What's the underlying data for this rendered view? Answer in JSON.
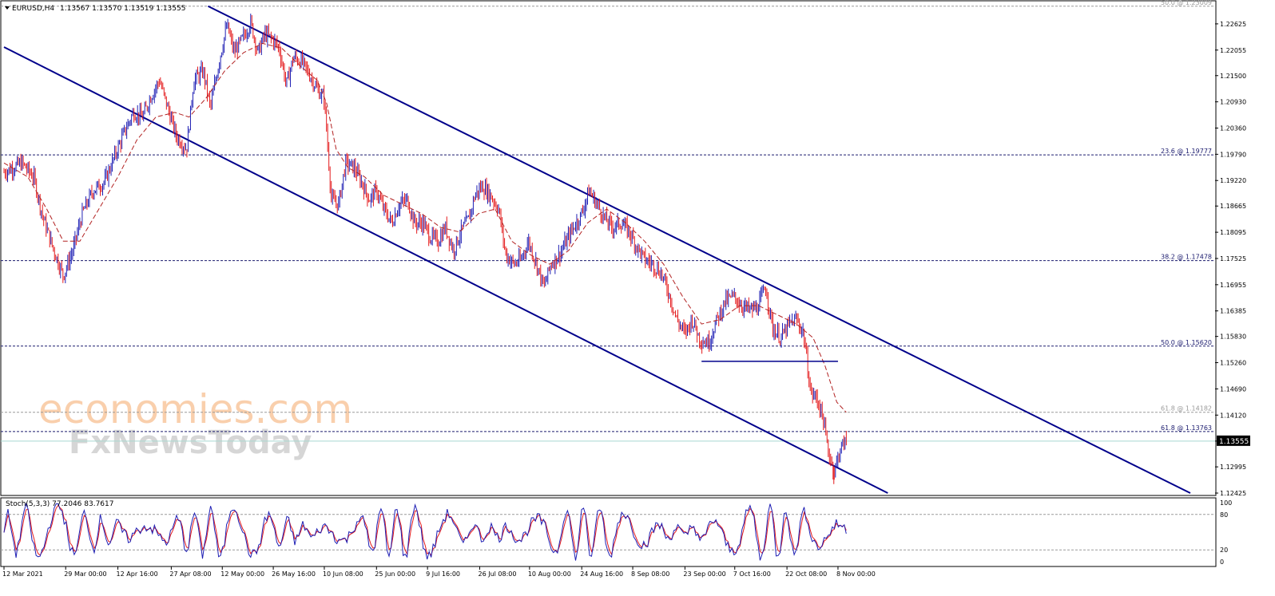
{
  "header": {
    "symbol": "EURUSD,H4",
    "ohlc": "1.13567 1.13570 1.13519 1.13555"
  },
  "watermark": {
    "line1": "economies.com",
    "line2": "FxNewsToday"
  },
  "colors": {
    "background": "#ffffff",
    "bull_candle": "#1f1fb4",
    "bear_candle": "#e41a1c",
    "moving_average": "#b22222",
    "channel_line": "#00008b",
    "fib_level": "#1b1b6e",
    "fib_faint": "#9a9a9a",
    "support_line": "#00008b",
    "bid_line": "#a8d8d0",
    "stoch_main": "#1f1fb4",
    "stoch_signal": "#e41a1c",
    "axis": "#000000",
    "watermark_orange": "#f5a86a",
    "watermark_grey": "#c9c9c9"
  },
  "chart_data": [
    {
      "type": "candlestick",
      "instrument": "EURUSD",
      "timeframe": "H4",
      "current_price": "1.13555",
      "y_ticks": [
        "1.22625",
        "1.22055",
        "1.21500",
        "1.20930",
        "1.20360",
        "1.19790",
        "1.19220",
        "1.18665",
        "1.18095",
        "1.17525",
        "1.16955",
        "1.16385",
        "1.15830",
        "1.15260",
        "1.14690",
        "1.14120",
        "1.13555",
        "1.12995",
        "1.12425"
      ],
      "y_tick_values": [
        1.22625,
        1.22055,
        1.215,
        1.2093,
        1.2036,
        1.1979,
        1.1922,
        1.18665,
        1.18095,
        1.17525,
        1.16955,
        1.16385,
        1.1583,
        1.1526,
        1.1469,
        1.1412,
        1.13555,
        1.12995,
        1.12425
      ],
      "ylim": [
        1.12425,
        1.23005
      ],
      "x_ticks": [
        "12 Mar 2021",
        "29 Mar 00:00",
        "12 Apr 16:00",
        "27 Apr 08:00",
        "12 May 00:00",
        "26 May 16:00",
        "10 Jun 08:00",
        "25 Jun 00:00",
        "9 Jul 16:00",
        "26 Jul 08:00",
        "10 Aug 00:00",
        "24 Aug 16:00",
        "8 Sep 08:00",
        "23 Sep 00:00",
        "7 Oct 16:00",
        "22 Oct 08:00",
        "8 Nov 00:00"
      ],
      "x_tick_index": [
        0,
        5.2,
        9.6,
        14.1,
        18.4,
        22.7,
        27.0,
        31.4,
        35.7,
        40.1,
        44.3,
        48.7,
        53.0,
        57.4,
        61.6,
        66.0,
        70.3
      ],
      "fib_levels": [
        {
          "label": "50.0 @ 1.23009",
          "value": 1.23009,
          "style": "faint"
        },
        {
          "label": "23.6 @ 1.19777",
          "value": 1.19777,
          "style": "strong"
        },
        {
          "label": "38.2 @ 1.17478",
          "value": 1.17478,
          "style": "strong"
        },
        {
          "label": "50.0 @ 1.15620",
          "value": 1.1562,
          "style": "strong"
        },
        {
          "label": "61.8 @ 1.14182",
          "value": 1.14182,
          "style": "faint"
        },
        {
          "label": "61.8 @ 1.13763",
          "value": 1.13763,
          "style": "strong"
        }
      ],
      "channel_upper": [
        {
          "x": 17.2,
          "y": 1.23009
        },
        {
          "x": 100,
          "y": 1.12425
        }
      ],
      "channel_lower": [
        {
          "x": 0,
          "y": 1.2212
        },
        {
          "x": 74.5,
          "y": 1.12425
        }
      ],
      "support_line": [
        {
          "x": 58.8,
          "y": 1.1529
        },
        {
          "x": 70.3,
          "y": 1.1529
        }
      ],
      "price_path": [
        [
          0,
          1.194
        ],
        [
          1.5,
          1.196
        ],
        [
          2.5,
          1.193
        ],
        [
          3.3,
          1.184
        ],
        [
          4.2,
          1.177
        ],
        [
          5.0,
          1.1715
        ],
        [
          5.8,
          1.177
        ],
        [
          6.6,
          1.185
        ],
        [
          7.5,
          1.19
        ],
        [
          8.5,
          1.192
        ],
        [
          9.4,
          1.198
        ],
        [
          10.2,
          1.203
        ],
        [
          10.9,
          1.207
        ],
        [
          11.7,
          1.206
        ],
        [
          12.3,
          1.21
        ],
        [
          13.1,
          1.214
        ],
        [
          13.8,
          1.208
        ],
        [
          14.5,
          1.202
        ],
        [
          15.4,
          1.199
        ],
        [
          16.0,
          1.214
        ],
        [
          16.8,
          1.216
        ],
        [
          17.4,
          1.208
        ],
        [
          18.2,
          1.219
        ],
        [
          18.8,
          1.226
        ],
        [
          19.4,
          1.22
        ],
        [
          20.1,
          1.223
        ],
        [
          20.8,
          1.2265
        ],
        [
          21.4,
          1.22
        ],
        [
          22.0,
          1.224
        ],
        [
          22.6,
          1.223
        ],
        [
          23.2,
          1.221
        ],
        [
          23.8,
          1.213
        ],
        [
          24.4,
          1.219
        ],
        [
          25.1,
          1.218
        ],
        [
          25.8,
          1.215
        ],
        [
          26.4,
          1.212
        ],
        [
          27.0,
          1.21
        ],
        [
          27.6,
          1.188
        ],
        [
          28.2,
          1.187
        ],
        [
          28.8,
          1.196
        ],
        [
          29.5,
          1.195
        ],
        [
          30.1,
          1.192
        ],
        [
          30.8,
          1.188
        ],
        [
          31.4,
          1.19
        ],
        [
          32.0,
          1.186
        ],
        [
          32.7,
          1.183
        ],
        [
          33.3,
          1.187
        ],
        [
          34.0,
          1.188
        ],
        [
          34.6,
          1.183
        ],
        [
          35.3,
          1.183
        ],
        [
          35.9,
          1.18
        ],
        [
          36.6,
          1.179
        ],
        [
          37.2,
          1.182
        ],
        [
          37.9,
          1.177
        ],
        [
          38.5,
          1.181
        ],
        [
          39.2,
          1.184
        ],
        [
          39.7,
          1.189
        ],
        [
          40.3,
          1.191
        ],
        [
          41.0,
          1.189
        ],
        [
          41.7,
          1.186
        ],
        [
          42.3,
          1.176
        ],
        [
          43.0,
          1.174
        ],
        [
          43.6,
          1.175
        ],
        [
          44.2,
          1.179
        ],
        [
          44.9,
          1.174
        ],
        [
          45.5,
          1.169
        ],
        [
          46.1,
          1.174
        ],
        [
          46.8,
          1.176
        ],
        [
          47.4,
          1.179
        ],
        [
          48.0,
          1.182
        ],
        [
          48.7,
          1.185
        ],
        [
          49.3,
          1.19
        ],
        [
          50.0,
          1.187
        ],
        [
          50.6,
          1.184
        ],
        [
          51.3,
          1.182
        ],
        [
          52.0,
          1.183
        ],
        [
          52.7,
          1.181
        ],
        [
          53.3,
          1.178
        ],
        [
          54.0,
          1.175
        ],
        [
          54.7,
          1.174
        ],
        [
          55.4,
          1.172
        ],
        [
          56.0,
          1.168
        ],
        [
          56.7,
          1.162
        ],
        [
          57.4,
          1.159
        ],
        [
          58.0,
          1.162
        ],
        [
          58.7,
          1.1575
        ],
        [
          59.4,
          1.157
        ],
        [
          60.1,
          1.162
        ],
        [
          60.8,
          1.166
        ],
        [
          61.5,
          1.167
        ],
        [
          62.2,
          1.165
        ],
        [
          62.9,
          1.164
        ],
        [
          63.5,
          1.1645
        ],
        [
          64.2,
          1.169
        ],
        [
          64.8,
          1.16
        ],
        [
          65.5,
          1.158
        ],
        [
          66.2,
          1.161
        ],
        [
          66.8,
          1.162
        ],
        [
          67.4,
          1.159
        ],
        [
          68.0,
          1.146
        ],
        [
          68.5,
          1.145
        ],
        [
          69.0,
          1.141
        ],
        [
          69.5,
          1.133
        ],
        [
          70.0,
          1.129
        ],
        [
          70.5,
          1.134
        ],
        [
          71.0,
          1.1356
        ]
      ],
      "ma_path": [
        [
          0,
          1.196
        ],
        [
          2.0,
          1.193
        ],
        [
          3.6,
          1.186
        ],
        [
          5.0,
          1.179
        ],
        [
          6.4,
          1.179
        ],
        [
          8.0,
          1.186
        ],
        [
          9.6,
          1.193
        ],
        [
          11.2,
          1.201
        ],
        [
          12.8,
          1.206
        ],
        [
          14.4,
          1.207
        ],
        [
          15.6,
          1.206
        ],
        [
          17.0,
          1.21
        ],
        [
          18.6,
          1.216
        ],
        [
          20.2,
          1.22
        ],
        [
          21.8,
          1.222
        ],
        [
          23.4,
          1.221
        ],
        [
          25.0,
          1.217
        ],
        [
          26.4,
          1.214
        ],
        [
          27.2,
          1.209
        ],
        [
          28.0,
          1.199
        ],
        [
          29.0,
          1.195
        ],
        [
          30.4,
          1.193
        ],
        [
          32.0,
          1.189
        ],
        [
          33.6,
          1.187
        ],
        [
          35.2,
          1.185
        ],
        [
          36.8,
          1.182
        ],
        [
          38.4,
          1.181
        ],
        [
          40.0,
          1.185
        ],
        [
          41.4,
          1.186
        ],
        [
          42.8,
          1.179
        ],
        [
          44.4,
          1.176
        ],
        [
          46.0,
          1.174
        ],
        [
          47.6,
          1.177
        ],
        [
          49.2,
          1.183
        ],
        [
          50.8,
          1.186
        ],
        [
          52.4,
          1.183
        ],
        [
          54.0,
          1.179
        ],
        [
          55.6,
          1.174
        ],
        [
          57.2,
          1.167
        ],
        [
          58.8,
          1.161
        ],
        [
          60.4,
          1.162
        ],
        [
          62.0,
          1.165
        ],
        [
          63.6,
          1.165
        ],
        [
          65.2,
          1.163
        ],
        [
          66.8,
          1.161
        ],
        [
          68.2,
          1.158
        ],
        [
          69.2,
          1.152
        ],
        [
          70.2,
          1.144
        ],
        [
          71.0,
          1.1418
        ]
      ]
    },
    {
      "type": "line",
      "title": "Stoch(5,3,3) 77.2046 83.7617",
      "indicator": "Stochastic Oscillator",
      "params": "5,3,3",
      "main_value": 77.2046,
      "signal_value": 83.7617,
      "y_ticks": [
        "100",
        "80",
        "20",
        "0"
      ],
      "y_tick_values": [
        100,
        80,
        20,
        0
      ],
      "ylim": [
        0,
        100
      ],
      "levels": [
        80,
        20
      ]
    }
  ]
}
